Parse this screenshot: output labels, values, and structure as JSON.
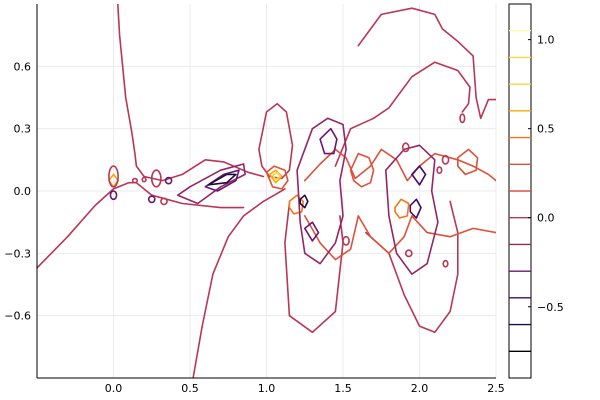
{
  "chart_data": {
    "type": "contour",
    "title": "",
    "xlabel": "",
    "ylabel": "",
    "xlim": [
      -0.5,
      2.5
    ],
    "ylim": [
      -0.9,
      0.9
    ],
    "x_ticks": [
      {
        "value": 0.0,
        "label": "0.0"
      },
      {
        "value": 0.5,
        "label": "0.5"
      },
      {
        "value": 1.0,
        "label": "1.0"
      },
      {
        "value": 1.5,
        "label": "1.5"
      },
      {
        "value": 2.0,
        "label": "2.0"
      },
      {
        "value": 2.5,
        "label": "2.5"
      }
    ],
    "y_ticks": [
      {
        "value": -0.6,
        "label": "−0.6"
      },
      {
        "value": -0.3,
        "label": "−0.3"
      },
      {
        "value": 0.0,
        "label": "0.0"
      },
      {
        "value": 0.3,
        "label": "0.3"
      },
      {
        "value": 0.6,
        "label": "0.6"
      }
    ],
    "grid": true,
    "colorbar": {
      "range": [
        -0.9,
        1.2
      ],
      "ticks": [
        {
          "value": -0.5,
          "label": "−0.5"
        },
        {
          "value": 0.0,
          "label": "0.0"
        },
        {
          "value": 0.5,
          "label": "0.5"
        },
        {
          "value": 1.0,
          "label": "1.0"
        }
      ],
      "levels": [
        -0.75,
        -0.6,
        -0.45,
        -0.3,
        -0.15,
        0.0,
        0.15,
        0.3,
        0.45,
        0.6,
        0.75,
        0.9,
        1.05
      ],
      "level_colors": [
        "#000004",
        "#1b0c41",
        "#420a68",
        "#6a176e",
        "#932667",
        "#ba3655",
        "#dd513a",
        "#dd513a",
        "#f3761b",
        "#fca50a",
        "#f6d746",
        "#f6d746",
        "#fcffa4"
      ]
    },
    "contours": [
      {
        "level": 0.0,
        "points": [
          [
            0.0,
            1.2
          ],
          [
            0.02,
            1.0
          ],
          [
            0.04,
            0.75
          ],
          [
            0.08,
            0.45
          ],
          [
            0.12,
            0.28
          ],
          [
            0.14,
            0.18
          ],
          [
            0.15,
            0.12
          ],
          [
            0.2,
            0.07
          ],
          [
            0.32,
            0.05
          ],
          [
            0.45,
            0.08
          ],
          [
            0.6,
            0.15
          ],
          [
            0.72,
            0.14
          ],
          [
            0.88,
            0.09
          ],
          [
            0.98,
            0.07
          ]
        ]
      },
      {
        "level": 0.0,
        "points": [
          [
            -0.5,
            -0.37
          ],
          [
            -0.3,
            -0.22
          ],
          [
            -0.12,
            -0.07
          ],
          [
            0.0,
            0.01
          ],
          [
            0.1,
            0.04
          ],
          [
            0.15,
            0.04
          ],
          [
            0.25,
            -0.02
          ],
          [
            0.45,
            -0.06
          ],
          [
            0.7,
            -0.08
          ],
          [
            0.85,
            -0.08
          ]
        ]
      },
      {
        "level": 0.0,
        "points": [
          [
            0.52,
            -0.9
          ],
          [
            0.58,
            -0.65
          ],
          [
            0.65,
            -0.4
          ],
          [
            0.75,
            -0.22
          ],
          [
            0.85,
            -0.12
          ],
          [
            0.98,
            -0.05
          ],
          [
            1.05,
            -0.02
          ],
          [
            1.12,
            0.01
          ]
        ]
      },
      {
        "level": 0.0,
        "points": [
          [
            0.95,
            0.2
          ],
          [
            1.0,
            0.38
          ],
          [
            1.07,
            0.42
          ],
          [
            1.13,
            0.38
          ],
          [
            1.17,
            0.22
          ],
          [
            1.15,
            0.1
          ],
          [
            1.1,
            0.06
          ],
          [
            1.02,
            0.07
          ],
          [
            0.97,
            0.12
          ],
          [
            0.95,
            0.2
          ]
        ]
      },
      {
        "level": 0.0,
        "points": [
          [
            1.15,
            -0.06
          ],
          [
            1.12,
            -0.25
          ],
          [
            1.15,
            -0.6
          ],
          [
            1.3,
            -0.68
          ],
          [
            1.45,
            -0.58
          ],
          [
            1.5,
            -0.25
          ],
          [
            1.48,
            -0.12
          ]
        ]
      },
      {
        "level": 0.0,
        "points": [
          [
            1.45,
            0.12
          ],
          [
            1.55,
            0.3
          ],
          [
            1.7,
            0.35
          ],
          [
            1.8,
            0.4
          ],
          [
            1.95,
            0.55
          ],
          [
            2.1,
            0.62
          ],
          [
            2.25,
            0.58
          ],
          [
            2.33,
            0.5
          ],
          [
            2.32,
            0.42
          ],
          [
            2.28,
            0.38
          ]
        ]
      },
      {
        "level": 0.0,
        "points": [
          [
            1.65,
            -0.2
          ],
          [
            1.8,
            -0.3
          ],
          [
            1.9,
            -0.5
          ],
          [
            2.0,
            -0.65
          ],
          [
            2.1,
            -0.68
          ],
          [
            2.2,
            -0.58
          ],
          [
            2.25,
            -0.4
          ],
          [
            2.25,
            -0.2
          ],
          [
            2.2,
            -0.05
          ]
        ]
      },
      {
        "level": 0.0,
        "points": [
          [
            1.6,
            0.7
          ],
          [
            1.75,
            0.85
          ],
          [
            1.95,
            0.88
          ],
          [
            2.1,
            0.85
          ],
          [
            2.15,
            0.78
          ],
          [
            2.25,
            0.72
          ],
          [
            2.35,
            0.65
          ],
          [
            2.37,
            0.45
          ],
          [
            2.4,
            0.35
          ],
          [
            2.45,
            0.44
          ],
          [
            2.5,
            0.44
          ]
        ]
      },
      {
        "level": 0.15,
        "points": [
          [
            1.25,
            0.05
          ],
          [
            1.35,
            0.13
          ],
          [
            1.45,
            0.2
          ],
          [
            1.52,
            0.16
          ],
          [
            1.58,
            0.06
          ],
          [
            1.68,
            0.12
          ],
          [
            1.75,
            0.2
          ],
          [
            1.85,
            0.15
          ],
          [
            1.92,
            0.05
          ],
          [
            2.0,
            0.12
          ],
          [
            2.1,
            0.18
          ],
          [
            2.25,
            0.15
          ],
          [
            2.35,
            0.12
          ],
          [
            2.45,
            0.08
          ],
          [
            2.5,
            0.05
          ]
        ]
      },
      {
        "level": 0.15,
        "points": [
          [
            1.25,
            -0.12
          ],
          [
            1.35,
            -0.25
          ],
          [
            1.45,
            -0.33
          ],
          [
            1.55,
            -0.28
          ],
          [
            1.6,
            -0.12
          ],
          [
            1.68,
            -0.22
          ],
          [
            1.8,
            -0.3
          ],
          [
            1.9,
            -0.22
          ],
          [
            1.95,
            -0.12
          ],
          [
            2.05,
            -0.2
          ],
          [
            2.2,
            -0.22
          ],
          [
            2.35,
            -0.18
          ],
          [
            2.5,
            -0.2
          ]
        ]
      },
      {
        "level": 0.3,
        "points": [
          [
            1.55,
            0.1
          ],
          [
            1.6,
            0.18
          ],
          [
            1.67,
            0.16
          ],
          [
            1.7,
            0.1
          ],
          [
            1.68,
            0.04
          ],
          [
            1.62,
            0.02
          ],
          [
            1.57,
            0.05
          ],
          [
            1.55,
            0.1
          ]
        ]
      },
      {
        "level": 0.3,
        "points": [
          [
            1.0,
            0.09
          ],
          [
            1.05,
            0.12
          ],
          [
            1.12,
            0.1
          ],
          [
            1.14,
            0.05
          ],
          [
            1.1,
            0.01
          ],
          [
            1.04,
            0.02
          ],
          [
            1.0,
            0.09
          ]
        ]
      },
      {
        "level": 0.3,
        "points": [
          [
            2.25,
            0.16
          ],
          [
            2.32,
            0.2
          ],
          [
            2.38,
            0.16
          ],
          [
            2.37,
            0.1
          ],
          [
            2.3,
            0.08
          ],
          [
            2.25,
            0.12
          ],
          [
            2.25,
            0.16
          ]
        ]
      },
      {
        "level": 0.45,
        "points": [
          [
            1.84,
            -0.08
          ],
          [
            1.88,
            -0.04
          ],
          [
            1.93,
            -0.06
          ],
          [
            1.92,
            -0.12
          ],
          [
            1.87,
            -0.13
          ],
          [
            1.84,
            -0.1
          ],
          [
            1.84,
            -0.08
          ]
        ]
      },
      {
        "level": 0.45,
        "points": [
          [
            1.15,
            -0.05
          ],
          [
            1.2,
            -0.02
          ],
          [
            1.24,
            -0.05
          ],
          [
            1.23,
            -0.1
          ],
          [
            1.18,
            -0.11
          ],
          [
            1.15,
            -0.08
          ],
          [
            1.15,
            -0.05
          ]
        ]
      },
      {
        "level": 0.6,
        "points": [
          [
            -0.03,
            0.05
          ],
          [
            0.0,
            0.08
          ],
          [
            0.03,
            0.05
          ],
          [
            0.0,
            0.02
          ],
          [
            -0.03,
            0.05
          ]
        ]
      },
      {
        "level": 0.6,
        "points": [
          [
            1.02,
            0.08
          ],
          [
            1.06,
            0.1
          ],
          [
            1.1,
            0.07
          ],
          [
            1.06,
            0.04
          ],
          [
            1.02,
            0.08
          ]
        ]
      },
      {
        "level": 0.75,
        "points": [
          [
            1.04,
            0.075
          ],
          [
            1.07,
            0.09
          ],
          [
            1.09,
            0.07
          ],
          [
            1.06,
            0.055
          ],
          [
            1.04,
            0.075
          ]
        ]
      },
      {
        "level": -0.15,
        "points": [
          [
            0.42,
            -0.02
          ],
          [
            0.5,
            0.02
          ],
          [
            0.7,
            0.1
          ],
          [
            0.85,
            0.13
          ],
          [
            0.86,
            0.08
          ],
          [
            0.7,
            0.02
          ],
          [
            0.55,
            -0.06
          ],
          [
            0.42,
            -0.02
          ]
        ]
      },
      {
        "level": -0.15,
        "points": [
          [
            1.2,
            0.1
          ],
          [
            1.3,
            0.3
          ],
          [
            1.4,
            0.35
          ],
          [
            1.5,
            0.32
          ],
          [
            1.52,
            0.2
          ],
          [
            1.48,
            0.05
          ],
          [
            1.5,
            -0.12
          ],
          [
            1.45,
            -0.25
          ],
          [
            1.35,
            -0.35
          ],
          [
            1.25,
            -0.3
          ],
          [
            1.22,
            -0.15
          ],
          [
            1.2,
            0.1
          ]
        ]
      },
      {
        "level": -0.15,
        "points": [
          [
            1.78,
            0.1
          ],
          [
            1.9,
            0.2
          ],
          [
            2.0,
            0.22
          ],
          [
            2.1,
            0.15
          ],
          [
            2.08,
            0.0
          ],
          [
            2.12,
            -0.15
          ],
          [
            2.05,
            -0.35
          ],
          [
            1.95,
            -0.4
          ],
          [
            1.85,
            -0.3
          ],
          [
            1.8,
            -0.12
          ],
          [
            1.78,
            0.1
          ]
        ]
      },
      {
        "level": -0.3,
        "points": [
          [
            0.6,
            0.02
          ],
          [
            0.72,
            0.08
          ],
          [
            0.82,
            0.1
          ],
          [
            0.8,
            0.05
          ],
          [
            0.68,
            0.0
          ],
          [
            0.6,
            0.02
          ]
        ]
      },
      {
        "level": -0.3,
        "points": [
          [
            1.35,
            0.25
          ],
          [
            1.42,
            0.3
          ],
          [
            1.46,
            0.25
          ],
          [
            1.44,
            0.18
          ],
          [
            1.38,
            0.18
          ],
          [
            1.35,
            0.25
          ]
        ]
      },
      {
        "level": -0.3,
        "points": [
          [
            1.25,
            -0.18
          ],
          [
            1.3,
            -0.15
          ],
          [
            1.34,
            -0.2
          ],
          [
            1.3,
            -0.24
          ],
          [
            1.25,
            -0.18
          ]
        ]
      },
      {
        "level": -0.45,
        "points": [
          [
            1.95,
            0.08
          ],
          [
            2.0,
            0.12
          ],
          [
            2.04,
            0.08
          ],
          [
            2.0,
            0.03
          ],
          [
            1.95,
            0.08
          ]
        ]
      },
      {
        "level": -0.45,
        "points": [
          [
            1.94,
            -0.07
          ],
          [
            1.98,
            -0.04
          ],
          [
            2.01,
            -0.08
          ],
          [
            1.98,
            -0.13
          ],
          [
            1.94,
            -0.1
          ],
          [
            1.94,
            -0.07
          ]
        ]
      },
      {
        "level": -0.6,
        "points": [
          [
            0.62,
            0.03
          ],
          [
            0.74,
            0.08
          ],
          [
            0.8,
            0.08
          ],
          [
            0.74,
            0.04
          ],
          [
            0.62,
            0.03
          ]
        ]
      },
      {
        "level": -0.6,
        "points": [
          [
            1.22,
            -0.04
          ],
          [
            1.25,
            -0.02
          ],
          [
            1.27,
            -0.05
          ],
          [
            1.25,
            -0.08
          ],
          [
            1.22,
            -0.06
          ],
          [
            1.22,
            -0.04
          ]
        ]
      }
    ],
    "small_loops": [
      {
        "level": 0.0,
        "cx": 0.33,
        "cy": -0.05,
        "rx": 0.02,
        "ry": 0.015
      },
      {
        "level": 0.0,
        "cx": 0.14,
        "cy": 0.05,
        "rx": 0.015,
        "ry": 0.01
      },
      {
        "level": 0.0,
        "cx": 0.2,
        "cy": 0.055,
        "rx": 0.012,
        "ry": 0.01
      },
      {
        "level": 0.0,
        "cx": 0.28,
        "cy": 0.06,
        "rx": 0.03,
        "ry": 0.04
      },
      {
        "level": 0.0,
        "cx": 0.0,
        "cy": 0.07,
        "rx": 0.03,
        "ry": 0.05
      },
      {
        "level": 0.0,
        "cx": 1.52,
        "cy": -0.24,
        "rx": 0.02,
        "ry": 0.02
      },
      {
        "level": 0.0,
        "cx": 2.17,
        "cy": 0.15,
        "rx": 0.02,
        "ry": 0.02
      },
      {
        "level": 0.0,
        "cx": 2.28,
        "cy": 0.35,
        "rx": 0.015,
        "ry": 0.02
      },
      {
        "level": 0.0,
        "cx": 2.17,
        "cy": -0.35,
        "rx": 0.015,
        "ry": 0.015
      },
      {
        "level": 0.0,
        "cx": 1.91,
        "cy": 0.21,
        "rx": 0.02,
        "ry": 0.02
      },
      {
        "level": -0.3,
        "cx": 0.36,
        "cy": 0.05,
        "rx": 0.02,
        "ry": 0.015
      },
      {
        "level": -0.3,
        "cx": 0.25,
        "cy": -0.04,
        "rx": 0.02,
        "ry": 0.015
      },
      {
        "level": -0.3,
        "cx": 0.0,
        "cy": -0.02,
        "rx": 0.02,
        "ry": 0.02
      },
      {
        "level": 0.0,
        "cx": 1.93,
        "cy": -0.3,
        "rx": 0.02,
        "ry": 0.015
      },
      {
        "level": 0.0,
        "cx": 2.13,
        "cy": 0.1,
        "rx": 0.015,
        "ry": 0.015
      }
    ]
  }
}
